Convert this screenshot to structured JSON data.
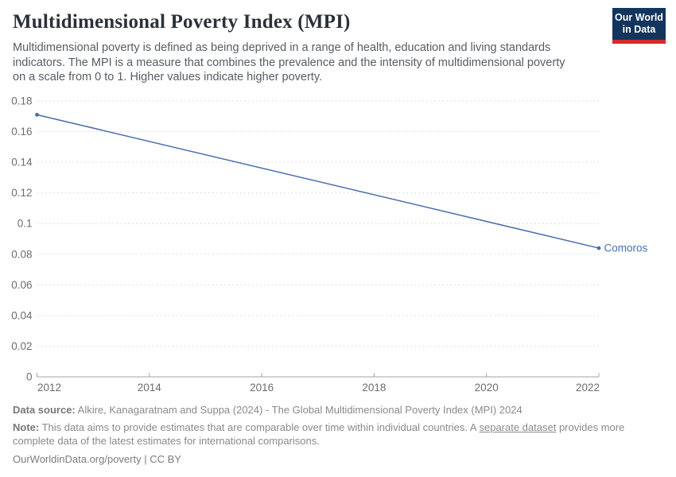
{
  "header": {
    "title": "Multidimensional Poverty Index (MPI)",
    "subtitle_lines": [
      "Multidimensional poverty is defined as being deprived in a range of health, education and living standards",
      "indicators. The MPI is a measure that combines the prevalence and the intensity of multidimensional poverty",
      "on a scale from 0 to 1. Higher values indicate higher poverty."
    ],
    "logo": {
      "line1": "Our World",
      "line2": "in Data"
    }
  },
  "colors": {
    "line": "#4a6daf",
    "entity_label": "#4470b3",
    "grid": "#dedede",
    "axis": "#a5a5a5",
    "tick_label": "#6d6d6d",
    "logo_bg": "#12355e",
    "logo_accent": "#d42b2b",
    "title_text": "#2b313b"
  },
  "chart_data": {
    "type": "line",
    "title": "Multidimensional Poverty Index (MPI)",
    "xlabel": "",
    "ylabel": "",
    "xlim": [
      2012,
      2022
    ],
    "ylim": [
      0,
      0.18
    ],
    "grid": "horizontal-dashed",
    "legend_position": "end-of-line-label",
    "x_ticks": [
      {
        "value": 2012,
        "label": "2012"
      },
      {
        "value": 2014,
        "label": "2014"
      },
      {
        "value": 2016,
        "label": "2016"
      },
      {
        "value": 2018,
        "label": "2018"
      },
      {
        "value": 2020,
        "label": "2020"
      },
      {
        "value": 2022,
        "label": "2022"
      }
    ],
    "y_ticks": [
      {
        "value": 0,
        "label": "0"
      },
      {
        "value": 0.02,
        "label": "0.02"
      },
      {
        "value": 0.04,
        "label": "0.04"
      },
      {
        "value": 0.06,
        "label": "0.06"
      },
      {
        "value": 0.08,
        "label": "0.08"
      },
      {
        "value": 0.1,
        "label": "0.1"
      },
      {
        "value": 0.12,
        "label": "0.12"
      },
      {
        "value": 0.14,
        "label": "0.14"
      },
      {
        "value": 0.16,
        "label": "0.16"
      },
      {
        "value": 0.18,
        "label": "0.18"
      }
    ],
    "series": [
      {
        "name": "Comoros",
        "points": [
          {
            "x": 2012,
            "y": 0.171
          },
          {
            "x": 2022,
            "y": 0.084
          }
        ],
        "markers": "endpoints"
      }
    ]
  },
  "footer": {
    "source_label": "Data source:",
    "source_text": " Alkire, Kanagaratnam and Suppa (2024) - The Global Multidimensional Poverty Index (MPI) 2024",
    "note_label": "Note:",
    "note_before_link": " This data aims to provide estimates that are comparable over time within individual countries. A ",
    "note_link": "separate dataset",
    "note_after_link": " provides more complete data of the latest estimates for international comparisons.",
    "citation": "OurWorldinData.org/poverty | CC BY"
  }
}
